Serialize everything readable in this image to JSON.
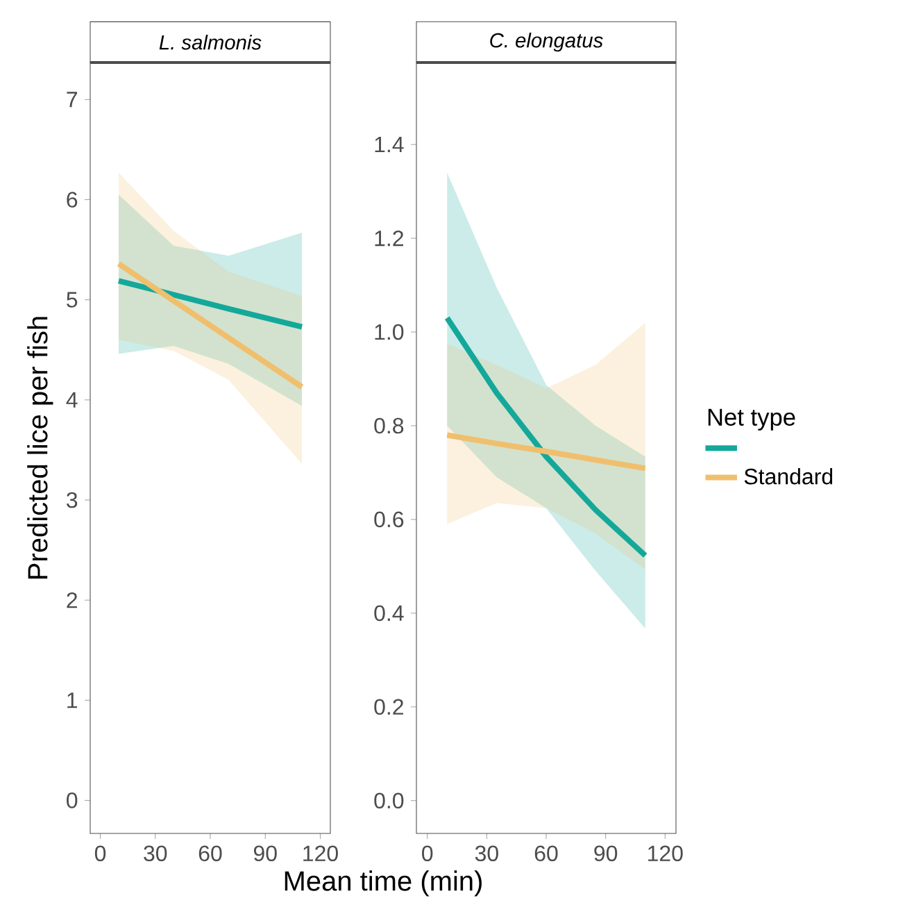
{
  "chart_data": [
    {
      "type": "line",
      "title": "L. salmonis",
      "ylabel": "Predicted lice per fish",
      "xlabel": "Mean time (min)",
      "xlim": [
        -5.5,
        125.5
      ],
      "xticks": [
        0,
        30,
        60,
        90,
        120
      ],
      "ylim": [
        -0.33,
        7.37
      ],
      "yticks": [
        0,
        1,
        2,
        3,
        4,
        5,
        6,
        7
      ],
      "grid": false,
      "series": [
        {
          "color": "#14a89a",
          "x": [
            10,
            40,
            70,
            110
          ],
          "values": [
            5.19,
            5.05,
            4.91,
            4.73
          ],
          "lower": [
            4.46,
            4.54,
            4.36,
            3.94
          ],
          "upper": [
            6.05,
            5.54,
            5.44,
            5.67
          ]
        },
        {
          "color": "#f0bf6e",
          "x": [
            10,
            40,
            70,
            110
          ],
          "values": [
            5.36,
            4.99,
            4.62,
            4.13
          ],
          "lower": [
            4.6,
            4.49,
            4.2,
            3.36
          ],
          "upper": [
            6.27,
            5.69,
            5.28,
            5.04
          ]
        }
      ]
    },
    {
      "type": "line",
      "title": "C. elongatus",
      "legend_title": "Net type",
      "legend": "right",
      "xlim": [
        -5.5,
        125.5
      ],
      "xticks": [
        0,
        30,
        60,
        90,
        120
      ],
      "ylim": [
        -0.07,
        1.575
      ],
      "yticks": [
        {
          "value": 0,
          "label": "0.0"
        },
        0.2,
        0.4,
        0.6,
        0.8,
        {
          "value": 1,
          "label": "1.0"
        },
        1.2,
        1.4
      ],
      "grid": false,
      "series": [
        {
          "color": "#14a89a",
          "x": [
            10,
            35,
            60,
            85,
            110
          ],
          "values": [
            1.03,
            0.87,
            0.734,
            0.62,
            0.523
          ],
          "lower": [
            0.8,
            0.69,
            0.624,
            0.49,
            0.367
          ],
          "upper": [
            1.34,
            1.095,
            0.887,
            0.8,
            0.734
          ]
        },
        {
          "name": "Standard",
          "color": "#f0bf6e",
          "x": [
            10,
            35,
            60,
            85,
            110
          ],
          "values": [
            0.78,
            0.762,
            0.745,
            0.727,
            0.709
          ],
          "lower": [
            0.59,
            0.635,
            0.624,
            0.57,
            0.493
          ],
          "upper": [
            0.975,
            0.93,
            0.88,
            0.93,
            1.02
          ]
        }
      ]
    }
  ]
}
